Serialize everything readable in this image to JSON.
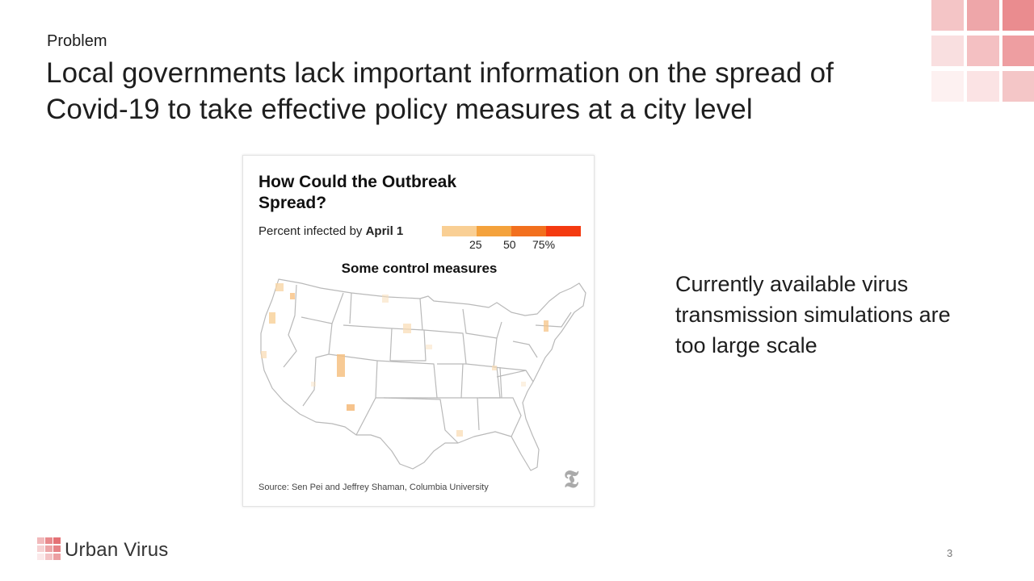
{
  "slide": {
    "kicker": "Problem",
    "title": "Local governments lack important information on the spread of Covid-19 to take effective policy measures at a city level",
    "side_text": "Currently available virus transmission simulations are too large scale",
    "brand": "Urban Virus",
    "page_number": "3"
  },
  "figure": {
    "title": "How Could the Outbreak Spread?",
    "subtitle_prefix": "Percent infected by",
    "subtitle_bold": "April 1",
    "panel_title": "Some control measures",
    "legend_ticks": [
      "25",
      "50",
      "75%"
    ],
    "legend_colors": [
      "#f9cf94",
      "#f4a23c",
      "#f2701e",
      "#f43a10"
    ],
    "source": "Source: Sen Pei and Jeffrey Shaman, Columbia University",
    "logo_glyph": "𝕿"
  },
  "colors": {
    "corner_grid": [
      "#f4c5c6",
      "#eea6a9",
      "#ea8c8f",
      "#f9dfe0",
      "#f4c0c2",
      "#ee9ea1",
      "#fdf1f1",
      "#fbe3e4",
      "#f4c6c7"
    ],
    "footer_grid": [
      "#f1b9bb",
      "#e88a8d",
      "#e47175",
      "#f6d2d3",
      "#eca5a7",
      "#e68387",
      "#fbe9ea",
      "#f3c3c5",
      "#ec9fa2"
    ]
  }
}
